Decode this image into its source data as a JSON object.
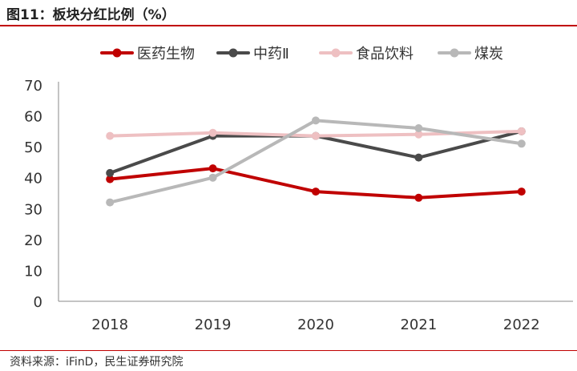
{
  "header": {
    "title": "图11：板块分红比例（%）"
  },
  "footer": {
    "source": "资料来源：iFinD，民生证券研究院"
  },
  "chart_data": {
    "type": "line",
    "title": "图11：板块分红比例（%）",
    "xlabel": "",
    "ylabel": "",
    "categories": [
      "2018",
      "2019",
      "2020",
      "2021",
      "2022"
    ],
    "ylim": [
      0,
      70
    ],
    "yticks": [
      0,
      10,
      20,
      30,
      40,
      50,
      60,
      70
    ],
    "grid": false,
    "legend_position": "top",
    "series": [
      {
        "name": "医药生物",
        "color": "#c00000",
        "values": [
          39.5,
          43,
          35.5,
          33.5,
          35.5
        ]
      },
      {
        "name": "中药Ⅱ",
        "color": "#4a4a4a",
        "values": [
          41.5,
          53.5,
          53.5,
          46.5,
          55
        ]
      },
      {
        "name": "食品饮料",
        "color": "#eec0c2",
        "values": [
          53.5,
          54.5,
          53.5,
          54,
          55
        ]
      },
      {
        "name": "煤炭",
        "color": "#b8b8b8",
        "values": [
          32,
          40,
          58.5,
          56,
          51
        ]
      }
    ]
  }
}
